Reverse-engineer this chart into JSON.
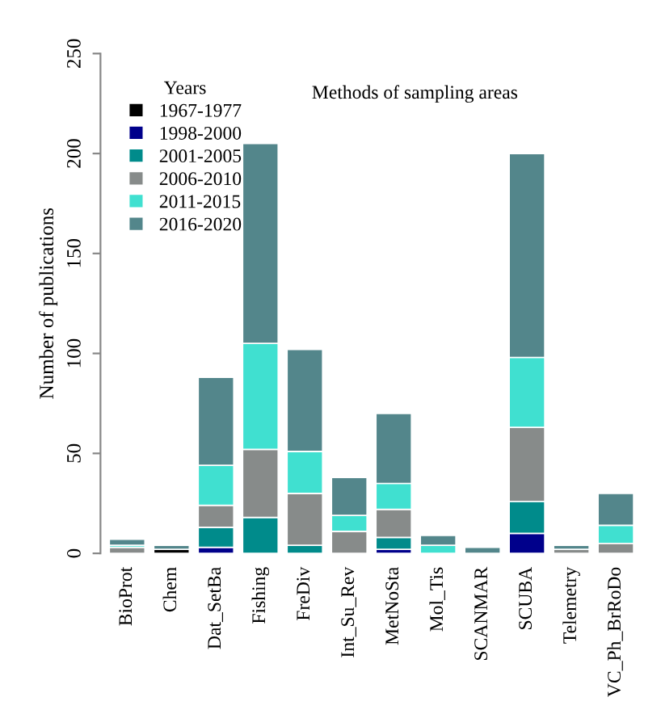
{
  "chart_data": {
    "type": "bar",
    "stacked": true,
    "title": "Methods of sampling areas",
    "ylabel": "Number of publications",
    "legend_title": "Years",
    "legend": "top left",
    "grid": false,
    "categories": [
      "BioProt",
      "Chem",
      "Dat_SetBa",
      "Fishing",
      "FreDiv",
      "Int_Su_Rev",
      "MetNoSta",
      "Mol_Tis",
      "SCANMAR",
      "SCUBA",
      "Telemetry",
      "VC_Ph_BrRoDo"
    ],
    "ylim": [
      0,
      250
    ],
    "yticks": [
      0,
      50,
      100,
      150,
      200,
      250
    ],
    "series": [
      {
        "name": "1967-1977",
        "color": "#000000",
        "values": [
          0,
          2,
          0,
          0,
          0,
          0,
          0,
          0,
          0,
          0,
          0,
          0
        ]
      },
      {
        "name": "1998-2000",
        "color": "#00008b",
        "values": [
          0,
          0,
          3,
          0,
          0,
          0,
          2,
          0,
          0,
          10,
          0,
          0
        ]
      },
      {
        "name": "2001-2005",
        "color": "#008b8b",
        "values": [
          0,
          0,
          10,
          18,
          4,
          0,
          6,
          0,
          0,
          16,
          0,
          0
        ]
      },
      {
        "name": "2006-2010",
        "color": "#878b8a",
        "values": [
          3,
          0,
          11,
          34,
          26,
          11,
          14,
          0,
          0,
          37,
          2,
          5
        ]
      },
      {
        "name": "2011-2015",
        "color": "#40e0d0",
        "values": [
          1,
          0,
          20,
          53,
          21,
          8,
          13,
          4,
          0,
          35,
          0,
          9
        ]
      },
      {
        "name": "2016-2020",
        "color": "#53868b",
        "values": [
          3,
          2,
          44,
          100,
          51,
          19,
          35,
          5,
          3,
          102,
          2,
          16
        ]
      }
    ]
  }
}
